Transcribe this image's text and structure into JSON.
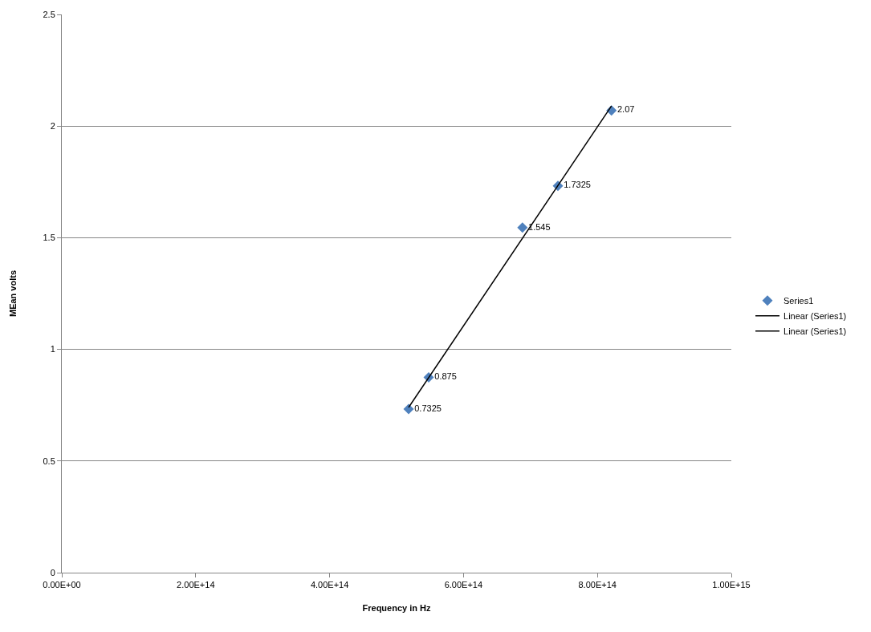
{
  "chart_data": {
    "type": "scatter",
    "xlabel": "Frequency in Hz",
    "ylabel": "MEan volts",
    "xlim": [
      0,
      1000000000000000.0
    ],
    "xticks": [
      {
        "value": 0,
        "label": "0.00E+00"
      },
      {
        "value": 200000000000000.0,
        "label": "2.00E+14"
      },
      {
        "value": 400000000000000.0,
        "label": "4.00E+14"
      },
      {
        "value": 600000000000000.0,
        "label": "6.00E+14"
      },
      {
        "value": 800000000000000.0,
        "label": "8.00E+14"
      },
      {
        "value": 1000000000000000.0,
        "label": "1.00E+15"
      }
    ],
    "ylim": [
      0,
      2.5
    ],
    "yticks": [
      0,
      0.5,
      1,
      1.5,
      2,
      2.5
    ],
    "grid": "y",
    "legend": "right",
    "series": [
      {
        "name": "Series1",
        "marker": "diamond",
        "color": "#4f81bd",
        "data_labels": true,
        "x": [
          518000000000000.0,
          548000000000000.0,
          688000000000000.0,
          741000000000000.0,
          821000000000000.0
        ],
        "values": [
          0.7325,
          0.875,
          1.545,
          1.7325,
          2.07
        ]
      },
      {
        "name": "Linear (Series1)",
        "type": "line",
        "marker": "none",
        "line_style": "solid",
        "color": "#000000",
        "x": [
          518000000000000.0,
          821000000000000.0
        ],
        "values": [
          0.74,
          2.09
        ]
      },
      {
        "name": "Linear (Series1)",
        "type": "line",
        "marker": "none",
        "line_style": "solid",
        "color": "#000000",
        "values": [
          null,
          null
        ]
      }
    ]
  }
}
